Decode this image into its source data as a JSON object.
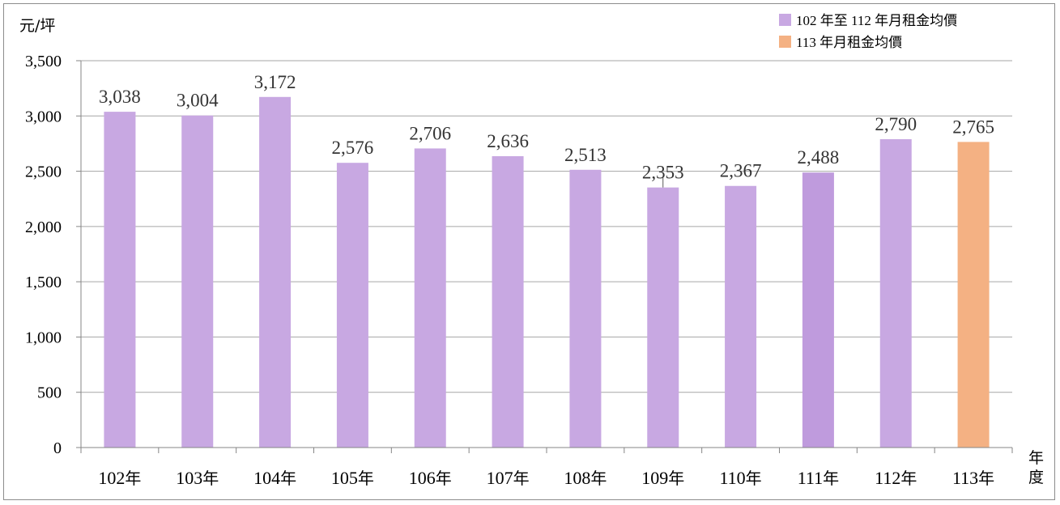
{
  "chart_data": {
    "type": "bar",
    "ylabel": "元/坪",
    "xlabel": "年度",
    "ylim": [
      0,
      3500
    ],
    "yticks": [
      0,
      500,
      1000,
      1500,
      2000,
      2500,
      3000,
      3500
    ],
    "ytick_labels": [
      "0",
      "500",
      "1,000",
      "1,500",
      "2,000",
      "2,500",
      "3,000",
      "3,500"
    ],
    "categories": [
      "102年",
      "103年",
      "104年",
      "105年",
      "106年",
      "107年",
      "108年",
      "109年",
      "110年",
      "111年",
      "112年",
      "113年"
    ],
    "values": [
      3038,
      3004,
      3172,
      2576,
      2706,
      2636,
      2513,
      2353,
      2367,
      2488,
      2790,
      2765
    ],
    "value_labels": [
      "3,038",
      "3,004",
      "3,172",
      "2,576",
      "2,706",
      "2,636",
      "2,513",
      "2,353",
      "2,367",
      "2,488",
      "2,790",
      "2,765"
    ],
    "series": [
      {
        "name": "102 年至 112 年月租金均價",
        "color": "#c8a8e2"
      },
      {
        "name": "113 年月租金均價",
        "color": "#f4b183"
      }
    ],
    "bar_colors": [
      "#c8a8e2",
      "#c8a8e2",
      "#c8a8e2",
      "#c8a8e2",
      "#c8a8e2",
      "#c8a8e2",
      "#c8a8e2",
      "#c8a8e2",
      "#c8a8e2",
      "#bf9bdd",
      "#c8a8e2",
      "#f4b183"
    ],
    "label_colors": [
      "#333333",
      "#333333",
      "#333333",
      "#333333",
      "#333333",
      "#333333",
      "#333333",
      "#333333",
      "#333333",
      "#333333",
      "#333333",
      "#cc0000"
    ],
    "grid": true,
    "legend_position": "top-right",
    "gridline_color": "#a6a6a6"
  }
}
